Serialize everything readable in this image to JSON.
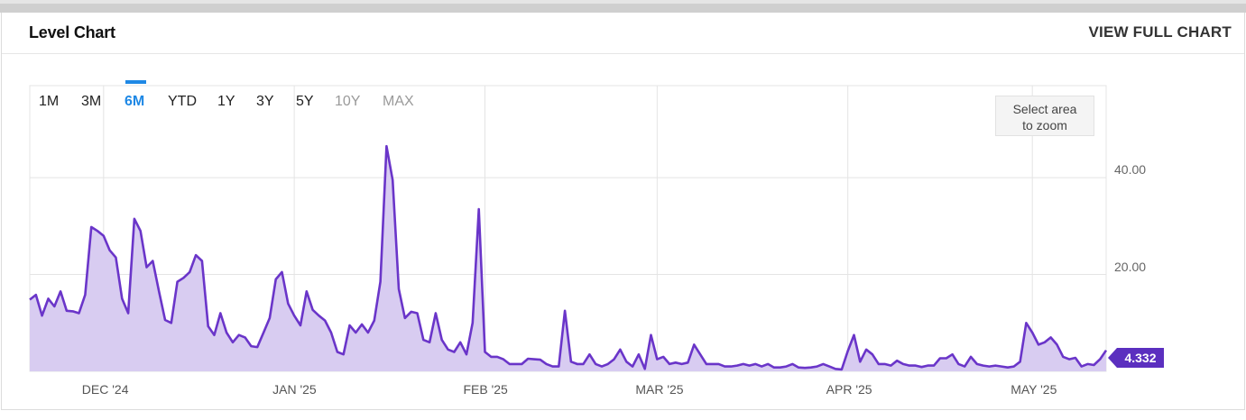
{
  "header": {
    "title": "Level Chart",
    "view_full": "VIEW FULL CHART"
  },
  "ranges": [
    {
      "label": "1M",
      "state": "normal"
    },
    {
      "label": "3M",
      "state": "normal"
    },
    {
      "label": "6M",
      "state": "active"
    },
    {
      "label": "YTD",
      "state": "normal"
    },
    {
      "label": "1Y",
      "state": "normal"
    },
    {
      "label": "3Y",
      "state": "normal"
    },
    {
      "label": "5Y",
      "state": "normal"
    },
    {
      "label": "10Y",
      "state": "disabled"
    },
    {
      "label": "MAX",
      "state": "disabled"
    }
  ],
  "zoom": {
    "line1": "Select area",
    "line2": "to zoom"
  },
  "last_value": "4.332",
  "colors": {
    "line": "#6a35c9",
    "fill": "#d8ccf1",
    "badge": "#5b2fbf",
    "active": "#1e88e5"
  },
  "chart_data": {
    "type": "area",
    "title": "",
    "xlabel": "",
    "ylabel": "",
    "ylim": [
      0,
      59
    ],
    "y_ticks": [
      {
        "value": 20,
        "label": "20.00"
      },
      {
        "value": 40,
        "label": "40.00"
      }
    ],
    "x_ticks": [
      {
        "date": "2024-12-01",
        "label": "DEC '24"
      },
      {
        "date": "2025-01-01",
        "label": "JAN '25"
      },
      {
        "date": "2025-02-01",
        "label": "FEB '25"
      },
      {
        "date": "2025-03-01",
        "label": "MAR '25"
      },
      {
        "date": "2025-04-01",
        "label": "APR '25"
      },
      {
        "date": "2025-05-01",
        "label": "MAY '25"
      }
    ],
    "x_range": [
      "2024-11-19",
      "2025-05-13"
    ],
    "grid": true,
    "series": [
      {
        "x": [
          "2024-11-19",
          "2024-11-20",
          "2024-11-21",
          "2024-11-22",
          "2024-11-23",
          "2024-11-24",
          "2024-11-25",
          "2024-11-26",
          "2024-11-27",
          "2024-11-28",
          "2024-11-29",
          "2024-11-30",
          "2024-12-01",
          "2024-12-02",
          "2024-12-03",
          "2024-12-04",
          "2024-12-05",
          "2024-12-06",
          "2024-12-07",
          "2024-12-08",
          "2024-12-09",
          "2024-12-10",
          "2024-12-11",
          "2024-12-12",
          "2024-12-13",
          "2024-12-14",
          "2024-12-15",
          "2024-12-16",
          "2024-12-17",
          "2024-12-18",
          "2024-12-19",
          "2024-12-20",
          "2024-12-21",
          "2024-12-22",
          "2024-12-23",
          "2024-12-24",
          "2024-12-25",
          "2024-12-26",
          "2024-12-27",
          "2024-12-28",
          "2024-12-29",
          "2024-12-30",
          "2024-12-31",
          "2025-01-01",
          "2025-01-02",
          "2025-01-03",
          "2025-01-04",
          "2025-01-05",
          "2025-01-06",
          "2025-01-07",
          "2025-01-08",
          "2025-01-09",
          "2025-01-10",
          "2025-01-11",
          "2025-01-12",
          "2025-01-13",
          "2025-01-14",
          "2025-01-15",
          "2025-01-16",
          "2025-01-17",
          "2025-01-18",
          "2025-01-19",
          "2025-01-20",
          "2025-01-21",
          "2025-01-22",
          "2025-01-23",
          "2025-01-24",
          "2025-01-25",
          "2025-01-26",
          "2025-01-27",
          "2025-01-28",
          "2025-01-29",
          "2025-01-30",
          "2025-01-31",
          "2025-02-01",
          "2025-02-02",
          "2025-02-03",
          "2025-02-04",
          "2025-02-05",
          "2025-02-06",
          "2025-02-07",
          "2025-02-08",
          "2025-02-09",
          "2025-02-10",
          "2025-02-11",
          "2025-02-12",
          "2025-02-13",
          "2025-02-14",
          "2025-02-15",
          "2025-02-16",
          "2025-02-17",
          "2025-02-18",
          "2025-02-19",
          "2025-02-20",
          "2025-02-21",
          "2025-02-22",
          "2025-02-23",
          "2025-02-24",
          "2025-02-25",
          "2025-02-26",
          "2025-02-27",
          "2025-02-28",
          "2025-03-01",
          "2025-03-02",
          "2025-03-03",
          "2025-03-04",
          "2025-03-05",
          "2025-03-06",
          "2025-03-07",
          "2025-03-08",
          "2025-03-09",
          "2025-03-10",
          "2025-03-11",
          "2025-03-12",
          "2025-03-13",
          "2025-03-14",
          "2025-03-15",
          "2025-03-16",
          "2025-03-17",
          "2025-03-18",
          "2025-03-19",
          "2025-03-20",
          "2025-03-21",
          "2025-03-22",
          "2025-03-23",
          "2025-03-24",
          "2025-03-25",
          "2025-03-26",
          "2025-03-27",
          "2025-03-28",
          "2025-03-29",
          "2025-03-30",
          "2025-03-31",
          "2025-04-01",
          "2025-04-02",
          "2025-04-03",
          "2025-04-04",
          "2025-04-05",
          "2025-04-06",
          "2025-04-07",
          "2025-04-08",
          "2025-04-09",
          "2025-04-10",
          "2025-04-11",
          "2025-04-12",
          "2025-04-13",
          "2025-04-14",
          "2025-04-15",
          "2025-04-16",
          "2025-04-17",
          "2025-04-18",
          "2025-04-19",
          "2025-04-20",
          "2025-04-21",
          "2025-04-22",
          "2025-04-23",
          "2025-04-24",
          "2025-04-25",
          "2025-04-26",
          "2025-04-27",
          "2025-04-28",
          "2025-04-29",
          "2025-04-30",
          "2025-05-01",
          "2025-05-02",
          "2025-05-03",
          "2025-05-04",
          "2025-05-05",
          "2025-05-06",
          "2025-05-07",
          "2025-05-08",
          "2025-05-09",
          "2025-05-10",
          "2025-05-11",
          "2025-05-12",
          "2025-05-13"
        ],
        "y": [
          14.8,
          15.8,
          11.5,
          15.0,
          13.4,
          16.5,
          12.5,
          12.4,
          12.0,
          15.8,
          29.8,
          29.0,
          28.0,
          25.0,
          23.5,
          15.0,
          12.0,
          31.5,
          29.0,
          21.5,
          22.8,
          16.5,
          10.6,
          10.0,
          18.5,
          19.3,
          20.5,
          24.0,
          22.8,
          9.3,
          7.5,
          12.0,
          8.0,
          6.0,
          7.5,
          7.0,
          5.2,
          5.0,
          8.0,
          11.0,
          19.0,
          20.5,
          14.0,
          11.5,
          9.5,
          16.5,
          12.7,
          11.5,
          10.5,
          8.0,
          4.0,
          3.5,
          9.5,
          8.0,
          9.7,
          8.0,
          10.5,
          18.5,
          46.5,
          39.5,
          17.0,
          11.0,
          12.3,
          12.0,
          6.5,
          6.0,
          12.0,
          6.5,
          4.5,
          4.0,
          6.0,
          3.5,
          10.0,
          33.5,
          4.0,
          3.0,
          3.0,
          2.5,
          1.5,
          1.5,
          1.5,
          2.6,
          2.5,
          2.4,
          1.5,
          1.0,
          1.0,
          12.5,
          2.0,
          1.5,
          1.5,
          3.5,
          1.5,
          1.0,
          1.5,
          2.5,
          4.5,
          2.0,
          1.0,
          3.5,
          0.5,
          7.5,
          2.5,
          3.0,
          1.5,
          1.8,
          1.5,
          1.8,
          5.5,
          3.5,
          1.5,
          1.5,
          1.5,
          1.0,
          1.0,
          1.2,
          1.5,
          1.2,
          1.5,
          1.0,
          1.5,
          0.8,
          0.8,
          1.0,
          1.5,
          0.8,
          0.7,
          0.8,
          1.0,
          1.5,
          1.0,
          0.5,
          0.4,
          4.2,
          7.5,
          2.0,
          4.5,
          3.5,
          1.5,
          1.5,
          1.2,
          2.2,
          1.5,
          1.2,
          1.2,
          0.9,
          1.2,
          1.2,
          2.7,
          2.7,
          3.5,
          1.5,
          1.0,
          3.0,
          1.5,
          1.2,
          1.0,
          1.2,
          1.0,
          0.8,
          1.0,
          2.0,
          10.0,
          8.0,
          5.5,
          6.0,
          7.0,
          5.5,
          3.0,
          2.5,
          2.8,
          1.0,
          1.5,
          1.3,
          2.5,
          4.332
        ]
      }
    ]
  }
}
